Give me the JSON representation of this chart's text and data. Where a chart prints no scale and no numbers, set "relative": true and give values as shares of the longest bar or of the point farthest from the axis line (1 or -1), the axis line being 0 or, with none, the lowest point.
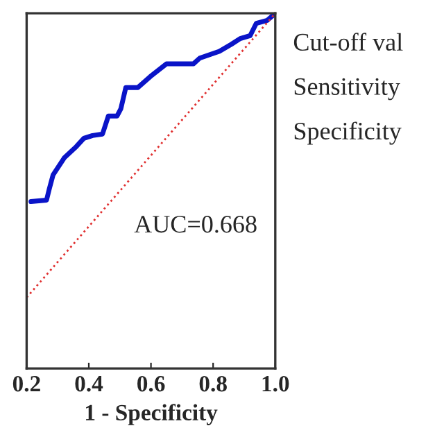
{
  "chart_data": {
    "type": "line",
    "xlabel": "1 - Specificity",
    "xlim": [
      0.2,
      1.0
    ],
    "xticks": [
      0.2,
      0.4,
      0.6,
      0.8,
      {
        "value": 1.0,
        "label": "1.0"
      }
    ],
    "relative": true,
    "tick_labels": "x",
    "grid": false,
    "legend": false,
    "series": [
      {
        "color": "#0a14c8",
        "line_style": "solid",
        "x": [
          0.214,
          0.264,
          0.273,
          0.285,
          0.321,
          0.36,
          0.384,
          0.412,
          0.444,
          0.463,
          0.491,
          0.503,
          0.519,
          0.558,
          0.598,
          0.65,
          0.737,
          0.757,
          0.82,
          0.859,
          0.887,
          0.919,
          0.939,
          0.974,
          1.0
        ],
        "values": [
          0.47,
          0.474,
          0.506,
          0.545,
          0.593,
          0.625,
          0.648,
          0.656,
          0.66,
          0.711,
          0.711,
          0.731,
          0.791,
          0.791,
          0.822,
          0.858,
          0.858,
          0.874,
          0.893,
          0.913,
          0.929,
          0.937,
          0.972,
          0.98,
          1.0
        ]
      },
      {
        "color": "#e03030",
        "line_style": "dotted",
        "x": [
          0.2,
          1.0
        ],
        "values": [
          0.2,
          1.0
        ]
      }
    ],
    "annotations": [
      "AUC=0.668",
      "Cut-off val",
      "Sensitivity",
      "Specificity"
    ]
  }
}
